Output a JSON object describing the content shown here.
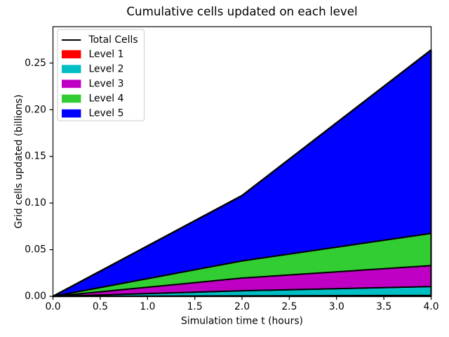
{
  "figure": {
    "background": "#ffffff"
  },
  "chart_data": {
    "type": "area",
    "stacked": true,
    "title": "Cumulative cells updated on each level",
    "xlabel": "Simulation time t (hours)",
    "ylabel": "Grid cells updated (billions)",
    "x": [
      0,
      2,
      4
    ],
    "series": [
      {
        "name": "Level 1",
        "color": "#ff0000",
        "values": [
          0,
          0.0005,
          0.001
        ]
      },
      {
        "name": "Level 2",
        "color": "#00bfc4",
        "values": [
          0,
          0.0055,
          0.0095
        ]
      },
      {
        "name": "Level 3",
        "color": "#bf00c4",
        "values": [
          0,
          0.0136,
          0.0225
        ]
      },
      {
        "name": "Level 4",
        "color": "#32cd32",
        "values": [
          0,
          0.0184,
          0.0345
        ]
      },
      {
        "name": "Level 5",
        "color": "#0000ff",
        "values": [
          0,
          0.07,
          0.1965
        ]
      }
    ],
    "total_line": {
      "name": "Total Cells",
      "color": "#000000",
      "values": [
        0,
        0.108,
        0.264
      ]
    },
    "edge_color": "#000000",
    "xlim": [
      0,
      4
    ],
    "ylim": [
      0,
      0.289
    ],
    "xticks": [
      0,
      0.5,
      1,
      1.5,
      2,
      2.5,
      3,
      3.5,
      4
    ],
    "xtick_labels": [
      "0.0",
      "0.5",
      "1.0",
      "1.5",
      "2.0",
      "2.5",
      "3.0",
      "3.5",
      "4.0"
    ],
    "yticks": [
      0,
      0.05,
      0.1,
      0.15,
      0.2,
      0.25
    ],
    "ytick_labels": [
      "0.00",
      "0.05",
      "0.10",
      "0.15",
      "0.20",
      "0.25"
    ],
    "grid": false,
    "legend_position": "upper left"
  },
  "legend": {
    "background": "#ffffff",
    "border_color": "#cccccc",
    "entries": [
      {
        "label": "Total Cells",
        "swatch": "line",
        "color": "#000000"
      },
      {
        "label": "Level 1",
        "swatch": "patch",
        "color": "#ff0000"
      },
      {
        "label": "Level 2",
        "swatch": "patch",
        "color": "#00bfc4"
      },
      {
        "label": "Level 3",
        "swatch": "patch",
        "color": "#bf00c4"
      },
      {
        "label": "Level 4",
        "swatch": "patch",
        "color": "#32cd32"
      },
      {
        "label": "Level 5",
        "swatch": "patch",
        "color": "#0000ff"
      }
    ]
  }
}
